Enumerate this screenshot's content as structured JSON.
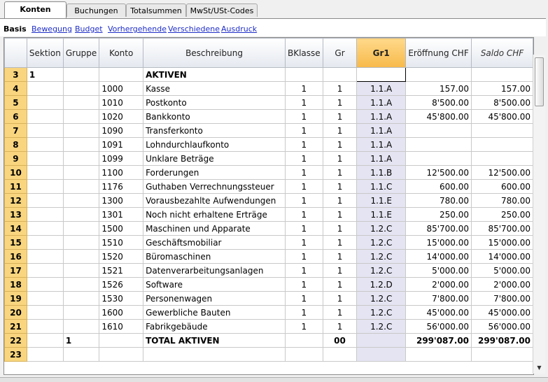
{
  "tabs": [
    "Konten",
    "Buchungen",
    "Totalsummen",
    "MwSt/USt-Codes"
  ],
  "views": [
    "Basis",
    "Bewegung",
    "Budget",
    "Vorhergehende",
    "Verschiedene",
    "Ausdruck"
  ],
  "columns": {
    "sektion": "Sektion",
    "gruppe": "Gruppe",
    "konto": "Konto",
    "beschreibung": "Beschreibung",
    "bklasse": "BKlasse",
    "gr": "Gr",
    "gr1": "Gr1",
    "eroeffnung": "Eröffnung CHF",
    "saldo": "Saldo CHF"
  },
  "rows": [
    {
      "n": "3",
      "sektion": "1",
      "gruppe": "",
      "konto": "",
      "beschr": "AKTIVEN",
      "bk": "",
      "gr": "",
      "gr1": "",
      "er": "",
      "sa": ""
    },
    {
      "n": "4",
      "sektion": "",
      "gruppe": "",
      "konto": "1000",
      "beschr": "Kasse",
      "bk": "1",
      "gr": "1",
      "gr1": "1.1.A",
      "er": "157.00",
      "sa": "157.00"
    },
    {
      "n": "5",
      "sektion": "",
      "gruppe": "",
      "konto": "1010",
      "beschr": "Postkonto",
      "bk": "1",
      "gr": "1",
      "gr1": "1.1.A",
      "er": "8'500.00",
      "sa": "8'500.00"
    },
    {
      "n": "6",
      "sektion": "",
      "gruppe": "",
      "konto": "1020",
      "beschr": "Bankkonto",
      "bk": "1",
      "gr": "1",
      "gr1": "1.1.A",
      "er": "45'800.00",
      "sa": "45'800.00"
    },
    {
      "n": "7",
      "sektion": "",
      "gruppe": "",
      "konto": "1090",
      "beschr": "Transferkonto",
      "bk": "1",
      "gr": "1",
      "gr1": "1.1.A",
      "er": "",
      "sa": ""
    },
    {
      "n": "8",
      "sektion": "",
      "gruppe": "",
      "konto": "1091",
      "beschr": "Lohndurchlaufkonto",
      "bk": "1",
      "gr": "1",
      "gr1": "1.1.A",
      "er": "",
      "sa": ""
    },
    {
      "n": "9",
      "sektion": "",
      "gruppe": "",
      "konto": "1099",
      "beschr": "Unklare Beträge",
      "bk": "1",
      "gr": "1",
      "gr1": "1.1.A",
      "er": "",
      "sa": ""
    },
    {
      "n": "10",
      "sektion": "",
      "gruppe": "",
      "konto": "1100",
      "beschr": "Forderungen",
      "bk": "1",
      "gr": "1",
      "gr1": "1.1.B",
      "er": "12'500.00",
      "sa": "12'500.00"
    },
    {
      "n": "11",
      "sektion": "",
      "gruppe": "",
      "konto": "1176",
      "beschr": "Guthaben Verrechnungssteuer",
      "bk": "1",
      "gr": "1",
      "gr1": "1.1.C",
      "er": "600.00",
      "sa": "600.00"
    },
    {
      "n": "12",
      "sektion": "",
      "gruppe": "",
      "konto": "1300",
      "beschr": "Vorausbezahlte Aufwendungen",
      "bk": "1",
      "gr": "1",
      "gr1": "1.1.E",
      "er": "780.00",
      "sa": "780.00"
    },
    {
      "n": "13",
      "sektion": "",
      "gruppe": "",
      "konto": "1301",
      "beschr": "Noch nicht erhaltene Erträge",
      "bk": "1",
      "gr": "1",
      "gr1": "1.1.E",
      "er": "250.00",
      "sa": "250.00"
    },
    {
      "n": "14",
      "sektion": "",
      "gruppe": "",
      "konto": "1500",
      "beschr": "Maschinen und Apparate",
      "bk": "1",
      "gr": "1",
      "gr1": "1.2.C",
      "er": "85'700.00",
      "sa": "85'700.00"
    },
    {
      "n": "15",
      "sektion": "",
      "gruppe": "",
      "konto": "1510",
      "beschr": "Geschäftsmobiliar",
      "bk": "1",
      "gr": "1",
      "gr1": "1.2.C",
      "er": "15'000.00",
      "sa": "15'000.00"
    },
    {
      "n": "16",
      "sektion": "",
      "gruppe": "",
      "konto": "1520",
      "beschr": "Büromaschinen",
      "bk": "1",
      "gr": "1",
      "gr1": "1.2.C",
      "er": "14'000.00",
      "sa": "14'000.00"
    },
    {
      "n": "17",
      "sektion": "",
      "gruppe": "",
      "konto": "1521",
      "beschr": "Datenverarbeitungsanlagen",
      "bk": "1",
      "gr": "1",
      "gr1": "1.2.C",
      "er": "5'000.00",
      "sa": "5'000.00"
    },
    {
      "n": "18",
      "sektion": "",
      "gruppe": "",
      "konto": "1526",
      "beschr": "Software",
      "bk": "1",
      "gr": "1",
      "gr1": "1.2.D",
      "er": "2'000.00",
      "sa": "2'000.00"
    },
    {
      "n": "19",
      "sektion": "",
      "gruppe": "",
      "konto": "1530",
      "beschr": "Personenwagen",
      "bk": "1",
      "gr": "1",
      "gr1": "1.2.C",
      "er": "7'800.00",
      "sa": "7'800.00"
    },
    {
      "n": "20",
      "sektion": "",
      "gruppe": "",
      "konto": "1600",
      "beschr": "Gewerbliche Bauten",
      "bk": "1",
      "gr": "1",
      "gr1": "1.2.C",
      "er": "45'000.00",
      "sa": "45'000.00"
    },
    {
      "n": "21",
      "sektion": "",
      "gruppe": "",
      "konto": "1610",
      "beschr": "Fabrikgebäude",
      "bk": "1",
      "gr": "1",
      "gr1": "1.2.C",
      "er": "56'000.00",
      "sa": "56'000.00"
    },
    {
      "n": "22",
      "sektion": "",
      "gruppe": "1",
      "konto": "",
      "beschr": "TOTAL AKTIVEN",
      "bk": "",
      "gr": "00",
      "gr1": "",
      "er": "299'087.00",
      "sa": "299'087.00"
    },
    {
      "n": "23",
      "sektion": "",
      "gruppe": "",
      "konto": "",
      "beschr": "",
      "bk": "",
      "gr": "",
      "gr1": "",
      "er": "",
      "sa": ""
    }
  ]
}
